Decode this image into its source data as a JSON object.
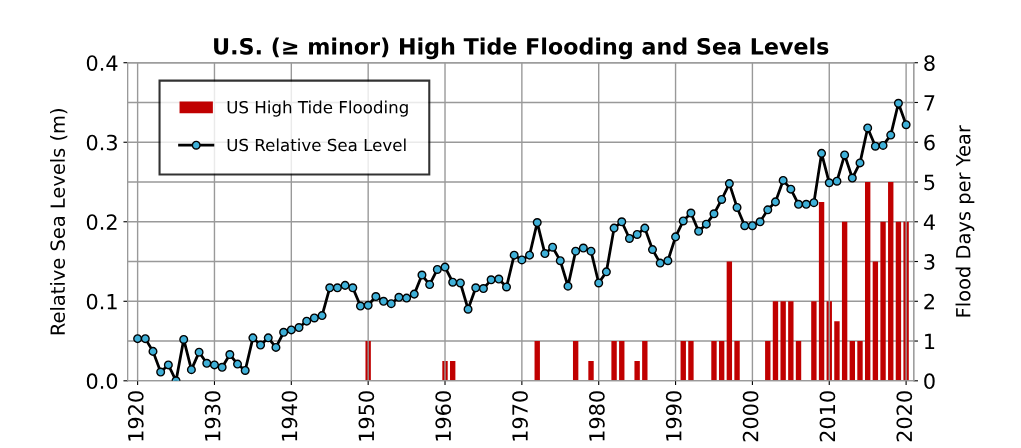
{
  "chart_data": {
    "type": "line",
    "title": "U.S. (≥ minor) High Tide Flooding and Sea Levels",
    "ylabel": "Relative Sea Levels (m)",
    "y2label": "Flood Days per Year",
    "xlim": [
      1918.7,
      2021
    ],
    "xticks": [
      1920,
      1930,
      1940,
      1950,
      1960,
      1970,
      1980,
      1990,
      2000,
      2010,
      2020
    ],
    "ylim": [
      0,
      0.4
    ],
    "yticks": [
      {
        "value": 0,
        "label": "0.0"
      },
      0.1,
      0.2,
      0.3,
      0.4
    ],
    "y2lim": [
      0,
      8
    ],
    "y2ticks": [
      0,
      1,
      2,
      3,
      4,
      5,
      6,
      7,
      8
    ],
    "grid": true,
    "legend": "top left",
    "marker": "circle",
    "line_style": "solid",
    "series": [
      {
        "name": "US High Tide Flooding",
        "type": "bar",
        "axis": "y2",
        "color": "#c00000",
        "x": [
          1950,
          1960,
          1961,
          1972,
          1977,
          1979,
          1982,
          1983,
          1985,
          1986,
          1991,
          1992,
          1995,
          1996,
          1997,
          1998,
          2002,
          2003,
          2004,
          2005,
          2006,
          2008,
          2009,
          2010,
          2011,
          2012,
          2013,
          2014,
          2015,
          2016,
          2017,
          2018,
          2019,
          2020
        ],
        "values": [
          1,
          0.5,
          0.5,
          1,
          1,
          0.5,
          1,
          1,
          0.5,
          1,
          1,
          1,
          1,
          1,
          3,
          1,
          1,
          2,
          2,
          2,
          1,
          2,
          4.5,
          2,
          1.5,
          4,
          1,
          1,
          5,
          3,
          4,
          5,
          4,
          4
        ]
      },
      {
        "name": "US Relative Sea Level",
        "axis": "y",
        "color": "#000000",
        "x": [
          1920,
          1921,
          1922,
          1923,
          1924,
          1925,
          1926,
          1927,
          1928,
          1929,
          1930,
          1931,
          1932,
          1933,
          1934,
          1935,
          1936,
          1937,
          1938,
          1939,
          1940,
          1941,
          1942,
          1943,
          1944,
          1945,
          1946,
          1947,
          1948,
          1949,
          1950,
          1951,
          1952,
          1953,
          1954,
          1955,
          1956,
          1957,
          1958,
          1959,
          1960,
          1961,
          1962,
          1963,
          1964,
          1965,
          1966,
          1967,
          1968,
          1969,
          1970,
          1971,
          1972,
          1973,
          1974,
          1975,
          1976,
          1977,
          1978,
          1979,
          1980,
          1981,
          1982,
          1983,
          1984,
          1985,
          1986,
          1987,
          1988,
          1989,
          1990,
          1991,
          1992,
          1993,
          1994,
          1995,
          1996,
          1997,
          1998,
          1999,
          2000,
          2001,
          2002,
          2003,
          2004,
          2005,
          2006,
          2007,
          2008,
          2009,
          2010,
          2011,
          2012,
          2013,
          2014,
          2015,
          2016,
          2017,
          2018,
          2019,
          2020
        ],
        "values": [
          0.053,
          0.053,
          0.037,
          0.011,
          0.02,
          0.0,
          0.052,
          0.014,
          0.036,
          0.022,
          0.02,
          0.017,
          0.033,
          0.021,
          0.013,
          0.054,
          0.045,
          0.054,
          0.042,
          0.061,
          0.064,
          0.067,
          0.075,
          0.079,
          0.082,
          0.117,
          0.117,
          0.12,
          0.117,
          0.094,
          0.095,
          0.106,
          0.1,
          0.097,
          0.105,
          0.104,
          0.109,
          0.133,
          0.121,
          0.14,
          0.143,
          0.124,
          0.123,
          0.09,
          0.117,
          0.116,
          0.127,
          0.128,
          0.118,
          0.158,
          0.152,
          0.158,
          0.199,
          0.16,
          0.168,
          0.151,
          0.119,
          0.163,
          0.167,
          0.163,
          0.123,
          0.137,
          0.192,
          0.2,
          0.179,
          0.184,
          0.192,
          0.165,
          0.148,
          0.151,
          0.181,
          0.201,
          0.211,
          0.188,
          0.197,
          0.21,
          0.228,
          0.248,
          0.218,
          0.195,
          0.195,
          0.2,
          0.215,
          0.225,
          0.252,
          0.241,
          0.222,
          0.222,
          0.224,
          0.286,
          0.249,
          0.251,
          0.284,
          0.255,
          0.274,
          0.318,
          0.295,
          0.296,
          0.309,
          0.349,
          0.322
        ]
      }
    ]
  }
}
